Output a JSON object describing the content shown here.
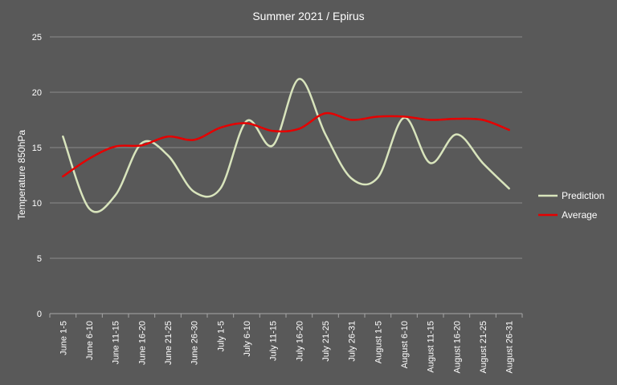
{
  "chart_data": {
    "type": "line",
    "title": "Summer  2021  / Epirus",
    "xlabel": "",
    "ylabel": "Temperature  850hPa",
    "ylim": [
      0,
      25
    ],
    "yticks": [
      0,
      5,
      10,
      15,
      20,
      25
    ],
    "grid": true,
    "legend_position": "right",
    "categories": [
      "June 1-5",
      "June 6-10",
      "June 11-15",
      "June 16-20",
      "June 21-25",
      "June 26-30",
      "July 1-5",
      "July 6-10",
      "July 11-15",
      "July 16-20",
      "July 21-25",
      "July 26-31",
      "August 1-5",
      "August 6-10",
      "August 11-15",
      "August 16-20",
      "August 21-25",
      "August 26-31"
    ],
    "series": [
      {
        "name": "Prediction",
        "color": "#d8e4bc",
        "values": [
          16.0,
          9.5,
          10.7,
          15.4,
          14.3,
          11.0,
          11.3,
          17.4,
          15.2,
          21.2,
          16.2,
          12.2,
          12.3,
          17.7,
          13.6,
          16.2,
          13.6,
          11.3
        ]
      },
      {
        "name": "Average",
        "color": "#e60000",
        "values": [
          12.4,
          14.0,
          15.1,
          15.2,
          16.0,
          15.7,
          16.8,
          17.2,
          16.5,
          16.7,
          18.1,
          17.5,
          17.8,
          17.8,
          17.5,
          17.6,
          17.5,
          16.6
        ]
      }
    ]
  }
}
